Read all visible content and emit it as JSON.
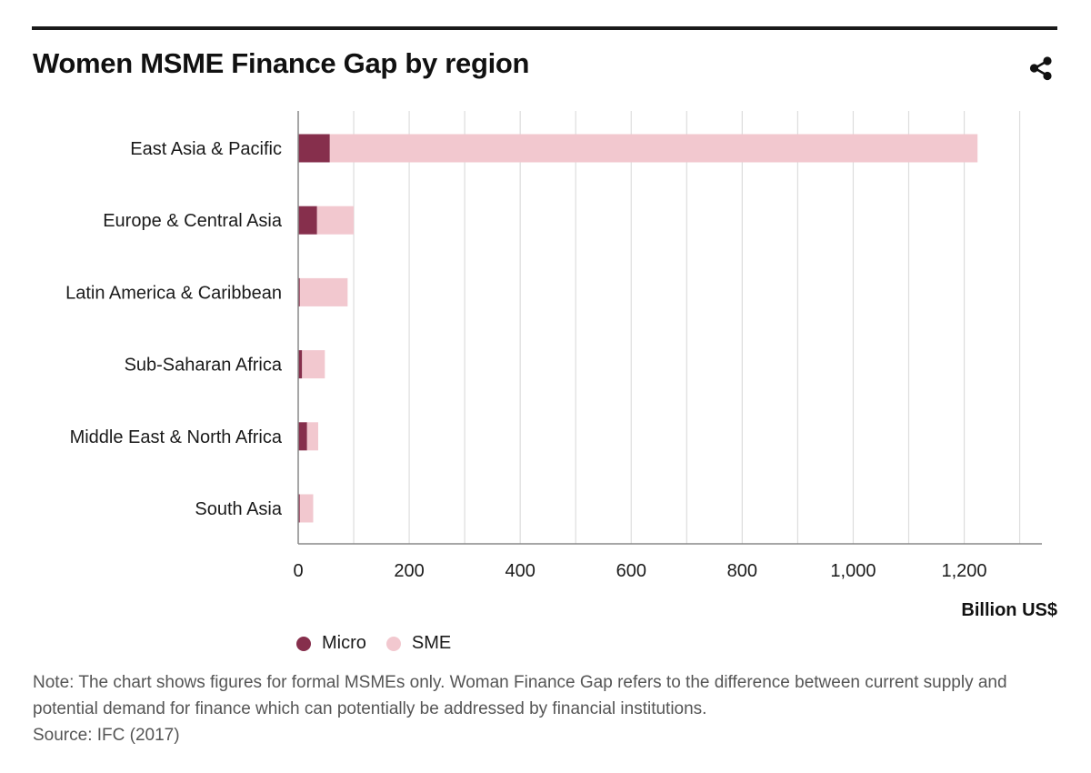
{
  "header": {
    "title": "Women MSME Finance Gap by region"
  },
  "icons": {
    "share": "share-icon"
  },
  "colors": {
    "micro": "#862f4c",
    "sme": "#f2c8cf",
    "grid": "#dddddd",
    "axis": "#888888",
    "text": "#1a1a1a",
    "note": "#555555",
    "rule": "#1a1a1a"
  },
  "chart_data": {
    "type": "bar",
    "orientation": "horizontal",
    "stacked": true,
    "title": "Women MSME Finance Gap by region",
    "xlabel": "Billion US$",
    "ylabel": "",
    "categories": [
      "East Asia & Pacific",
      "Europe & Central Asia",
      "Latin America & Caribbean",
      "Sub-Saharan Africa",
      "Middle East & North Africa",
      "South Asia"
    ],
    "series": [
      {
        "name": "Micro",
        "values": [
          57,
          34,
          3,
          7,
          16,
          3
        ]
      },
      {
        "name": "SME",
        "values": [
          1167,
          66,
          86,
          41,
          20,
          24
        ]
      }
    ],
    "xlim": [
      0,
      1340
    ],
    "xticks": [
      0,
      200,
      400,
      600,
      800,
      1000,
      1200
    ],
    "xtick_labels": [
      "0",
      "200",
      "400",
      "600",
      "800",
      "1,000",
      "1,200"
    ],
    "grid": true,
    "grid_step": 100,
    "legend": "bottom-left"
  },
  "legend": {
    "items": [
      {
        "label": "Micro"
      },
      {
        "label": "SME"
      }
    ]
  },
  "notes": {
    "note": "Note: The chart shows figures for formal MSMEs only. Woman Finance Gap refers to the difference between current supply and potential demand for finance which can potentially be addressed by financial institutions.",
    "source": "Source: IFC (2017)"
  }
}
